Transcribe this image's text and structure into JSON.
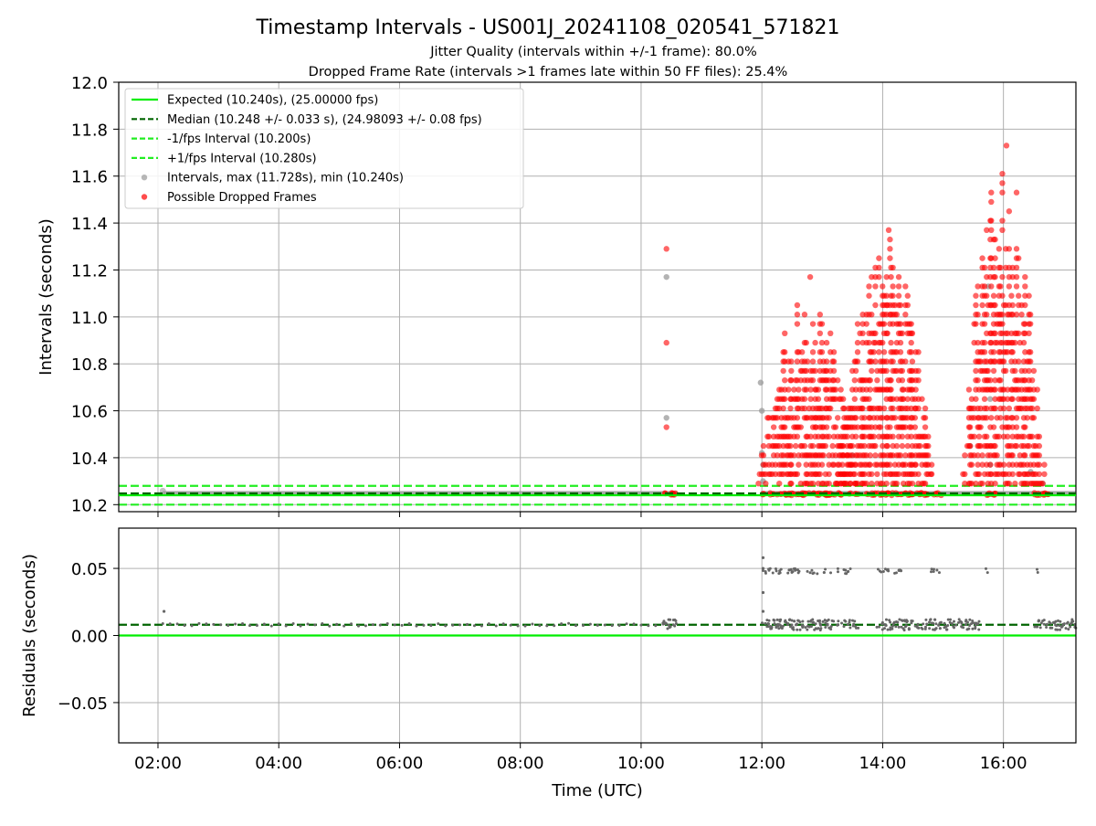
{
  "figure": {
    "title": "Timestamp Intervals - US001J_20241108_020541_571821",
    "subtitle1": "Jitter Quality (intervals within +/-1 frame): 80.0%",
    "subtitle2": "Dropped Frame Rate (intervals >1 frames late within 50 FF files): 25.4%"
  },
  "colors": {
    "expected": "#00ee00",
    "median": "#006400",
    "interval_band": "#22ee22",
    "intervals": "#999999",
    "dropped": "#ff0000",
    "residuals": "#666666",
    "grid": "#b0b0b0"
  },
  "chart_data": [
    {
      "type": "scatter",
      "ylabel": "Intervals (seconds)",
      "xlabel": "",
      "xlim_hours": [
        1.35,
        17.2
      ],
      "ylim": [
        10.17,
        12.0
      ],
      "yticks": [
        10.2,
        10.4,
        10.6,
        10.8,
        11.0,
        11.2,
        11.4,
        11.6,
        11.8,
        12.0
      ],
      "ytick_labels": [
        "10.2",
        "10.4",
        "10.6",
        "10.8",
        "11.0",
        "11.2",
        "11.4",
        "11.6",
        "11.8",
        "12.0"
      ],
      "grid": true,
      "legend_position": "top-left",
      "legend": [
        "Expected (10.240s), (25.00000 fps)",
        "Median (10.248 +/- 0.033 s), (24.98093 +/- 0.08 fps)",
        "-1/fps Interval (10.200s)",
        "+1/fps Interval (10.280s)",
        "Intervals, max (11.728s), min (10.240s)",
        "Possible Dropped Frames"
      ],
      "hlines": {
        "expected": 10.24,
        "median": 10.248,
        "minus": 10.2,
        "plus": 10.28
      },
      "baseline_segments_hours": [
        [
          2.08,
          10.35
        ],
        [
          10.35,
          10.6
        ],
        [
          11.98,
          17.2
        ]
      ],
      "gray_points": [
        {
          "x": 10.42,
          "y": 11.17
        },
        {
          "x": 10.42,
          "y": 10.57
        },
        {
          "x": 11.98,
          "y": 10.72
        },
        {
          "x": 12.0,
          "y": 10.6
        },
        {
          "x": 12.0,
          "y": 10.42
        },
        {
          "x": 12.02,
          "y": 10.3
        },
        {
          "x": 12.02,
          "y": 10.37
        },
        {
          "x": 13.5,
          "y": 10.41
        },
        {
          "x": 15.45,
          "y": 10.45
        },
        {
          "x": 15.75,
          "y": 11.13
        },
        {
          "x": 15.78,
          "y": 10.65
        },
        {
          "x": 15.78,
          "y": 10.37
        },
        {
          "x": 16.45,
          "y": 10.34
        },
        {
          "x": 16.65,
          "y": 10.29
        }
      ],
      "dropped_points": [
        {
          "x": 10.42,
          "y": 11.29
        },
        {
          "x": 10.42,
          "y": 10.89
        },
        {
          "x": 10.42,
          "y": 10.53
        }
      ],
      "dropped_clusters": [
        {
          "center": 12.75,
          "halfwidth": 0.82,
          "peak": 11.17
        },
        {
          "center": 14.05,
          "halfwidth": 0.82,
          "peak": 11.37
        },
        {
          "center": 16.0,
          "halfwidth": 0.7,
          "peak": 11.73
        }
      ],
      "dropped_baseline_ranges": [
        [
          10.35,
          10.6
        ],
        [
          12.0,
          13.6
        ],
        [
          13.7,
          15.0
        ],
        [
          15.7,
          15.9
        ],
        [
          16.5,
          16.8
        ]
      ]
    },
    {
      "type": "scatter",
      "ylabel": "Residuals (seconds)",
      "xlabel": "Time (UTC)",
      "xlim_hours": [
        1.35,
        17.2
      ],
      "ylim": [
        -0.08,
        0.08
      ],
      "yticks": [
        -0.05,
        0.0,
        0.05
      ],
      "ytick_labels": [
        "−0.05",
        "0.00",
        "0.05"
      ],
      "xticks_hours": [
        2,
        4,
        6,
        8,
        10,
        12,
        14,
        16
      ],
      "xtick_labels": [
        "02:00",
        "04:00",
        "06:00",
        "08:00",
        "10:00",
        "12:00",
        "14:00",
        "16:00"
      ],
      "grid": true,
      "hlines": {
        "zero": 0.0,
        "median": 0.008
      },
      "base_value": 0.008,
      "high_value": 0.048,
      "outliers": [
        {
          "x": 2.1,
          "y": 0.018
        },
        {
          "x": 12.02,
          "y": 0.058
        },
        {
          "x": 12.02,
          "y": 0.032
        },
        {
          "x": 12.02,
          "y": 0.018
        },
        {
          "x": 12.02,
          "y": 0.05
        }
      ],
      "high_ranges": [
        [
          12.0,
          13.5
        ],
        [
          13.9,
          14.4
        ],
        [
          14.8,
          15.0
        ],
        [
          15.7,
          15.75
        ],
        [
          16.55,
          16.6
        ]
      ],
      "dense_ranges": [
        [
          12.0,
          13.6
        ],
        [
          13.9,
          15.6
        ],
        [
          16.5,
          17.2
        ]
      ]
    }
  ]
}
